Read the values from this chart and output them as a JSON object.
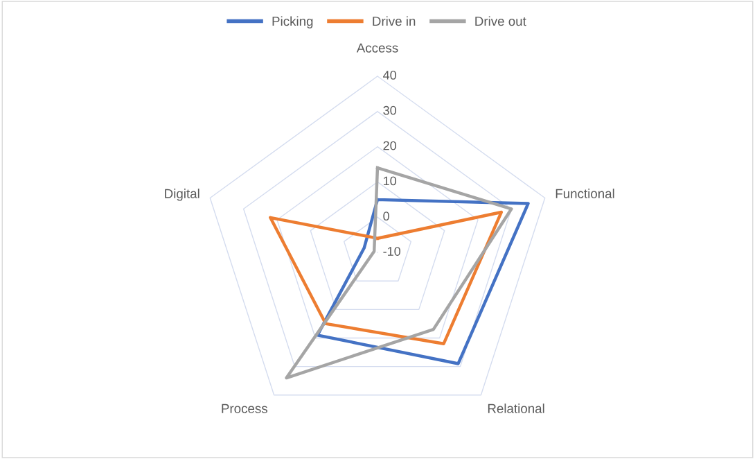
{
  "chart_data": {
    "type": "radar",
    "categories": [
      "Access",
      "Functional",
      "Relational",
      "Process",
      "Digital"
    ],
    "series": [
      {
        "name": "Picking",
        "color": "#4472c4",
        "values": [
          5,
          35,
          29,
          19,
          -6
        ]
      },
      {
        "name": "Drive in",
        "color": "#ed7d31",
        "values": [
          -6,
          27,
          22,
          15,
          22
        ]
      },
      {
        "name": "Drive out",
        "color": "#a5a5a5",
        "values": [
          14,
          30,
          17,
          34,
          -9
        ]
      }
    ],
    "ylim": [
      -10,
      40
    ],
    "yticks": [
      -10,
      0,
      10,
      20,
      30,
      40
    ],
    "grid": true,
    "legend": "top"
  }
}
